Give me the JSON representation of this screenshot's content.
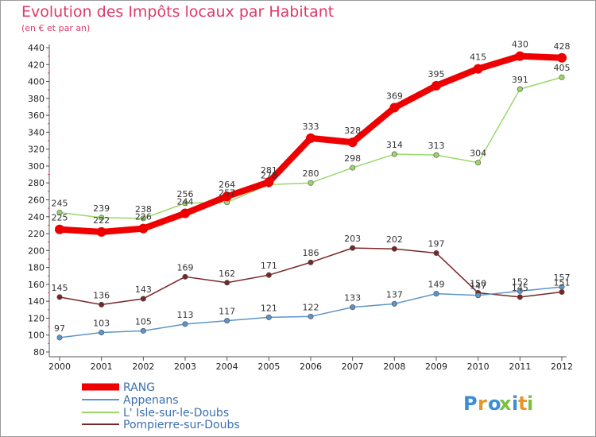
{
  "title": "Evolution des Impôts locaux par Habitant",
  "subtitle": "(en € et par an)",
  "brand": "Proxiti",
  "chart_data": {
    "type": "line",
    "title": "Evolution des Impôts locaux par Habitant",
    "subtitle": "(en € et par an)",
    "x": [
      "2000",
      "2001",
      "2002",
      "2003",
      "2004",
      "2005",
      "2006",
      "2007",
      "2008",
      "2009",
      "2010",
      "2011",
      "2012"
    ],
    "ylim": [
      80,
      440
    ],
    "yticks": [
      80,
      100,
      120,
      140,
      160,
      180,
      200,
      220,
      240,
      260,
      280,
      300,
      320,
      340,
      360,
      380,
      400,
      420,
      440
    ],
    "grid": false,
    "legend_position": "bottom",
    "series": [
      {
        "name": "RANG",
        "color": "#ee0000",
        "values": [
          225,
          222,
          226,
          244,
          264,
          281,
          333,
          328,
          369,
          395,
          415,
          430,
          428
        ]
      },
      {
        "name": "Appenans",
        "color": "#5d95c8",
        "values": [
          97,
          103,
          105,
          113,
          117,
          121,
          122,
          133,
          137,
          149,
          147,
          152,
          157
        ]
      },
      {
        "name": "L' Isle-sur-le-Doubs",
        "color": "#9ad86a",
        "values": [
          245,
          239,
          238,
          256,
          257,
          278,
          280,
          298,
          314,
          313,
          304,
          391,
          405
        ]
      },
      {
        "name": "Pompierre-sur-Doubs",
        "color": "#7a2626",
        "values": [
          145,
          136,
          143,
          169,
          162,
          171,
          186,
          203,
          202,
          197,
          150,
          145,
          151
        ]
      }
    ],
    "data_labels": [
      [
        "225",
        "222",
        "226",
        "244",
        "264",
        "281",
        "333",
        "328",
        "369",
        "395",
        "415",
        "430",
        "428"
      ],
      [
        "97",
        "103",
        "105",
        "113",
        "117",
        "121",
        "122",
        "133",
        "137",
        "149",
        "147",
        "152",
        "157"
      ],
      [
        "245",
        "239",
        "238",
        "256",
        "257",
        "278",
        "280",
        "298",
        "314",
        "313",
        "304",
        "391",
        "405"
      ],
      [
        "145",
        "136",
        "143",
        "169",
        "162",
        "171",
        "186",
        "203",
        "202",
        "197",
        "150",
        "145",
        "151"
      ]
    ]
  }
}
